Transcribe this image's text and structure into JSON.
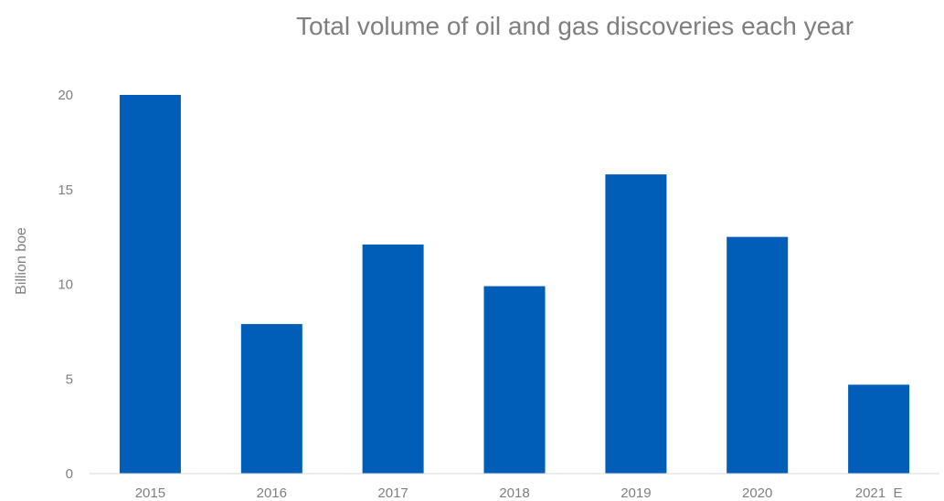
{
  "chart_data": {
    "type": "bar",
    "title": "Total volume of oil and gas discoveries each year",
    "xlabel": "",
    "ylabel": "Billion boe",
    "categories": [
      "2015",
      "2016",
      "2017",
      "2018",
      "2019",
      "2020",
      "2021  E"
    ],
    "values": [
      20.0,
      7.9,
      12.1,
      9.9,
      15.8,
      12.5,
      4.7
    ],
    "ylim": [
      0,
      20
    ],
    "yticks": [
      0,
      5,
      10,
      15,
      20
    ],
    "grid": false,
    "legend": "none",
    "bar_color": "#005EB8",
    "axis_color": "#d9d9d9",
    "text_color": "#7f7f7f"
  }
}
